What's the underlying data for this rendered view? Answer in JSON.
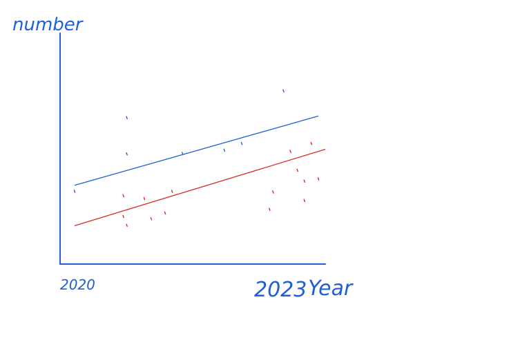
{
  "chart_data": {
    "type": "scatter",
    "title": "",
    "xlabel": "Year",
    "ylabel": "number",
    "x_tick_labels": [
      "2020",
      "2023"
    ],
    "xlim": [
      2020,
      2023.6
    ],
    "ylim": [
      0,
      100
    ],
    "grid": false,
    "legend": "none",
    "series": [
      {
        "color": "#1f5fd6",
        "points": [
          [
            2020.0,
            31.5
          ],
          [
            2020.75,
            63.4
          ],
          [
            2020.75,
            47.7
          ],
          [
            2021.55,
            47.9
          ],
          [
            2022.15,
            49.3
          ],
          [
            2022.4,
            52.2
          ],
          [
            2023.0,
            75.0
          ]
        ],
        "trend": [
          [
            2020.0,
            34.1
          ],
          [
            2023.5,
            64.1
          ]
        ]
      },
      {
        "color": "#d62b1f",
        "points": [
          [
            2020.7,
            29.6
          ],
          [
            2020.75,
            16.8
          ],
          [
            2020.7,
            20.6
          ],
          [
            2021.0,
            28.4
          ],
          [
            2021.1,
            19.6
          ],
          [
            2021.3,
            22.1
          ],
          [
            2021.4,
            31.5
          ],
          [
            2022.8,
            23.7
          ],
          [
            2022.85,
            31.2
          ],
          [
            2023.1,
            48.8
          ],
          [
            2023.2,
            40.6
          ],
          [
            2023.3,
            35.9
          ],
          [
            2023.3,
            27.5
          ],
          [
            2023.4,
            52.2
          ],
          [
            2023.5,
            36.9
          ]
        ],
        "trend": [
          [
            2020.0,
            16.6
          ],
          [
            2023.6,
            49.7
          ]
        ]
      }
    ]
  },
  "colors": {
    "axis": "#1f5fd6",
    "label": "#1f5fd6"
  }
}
